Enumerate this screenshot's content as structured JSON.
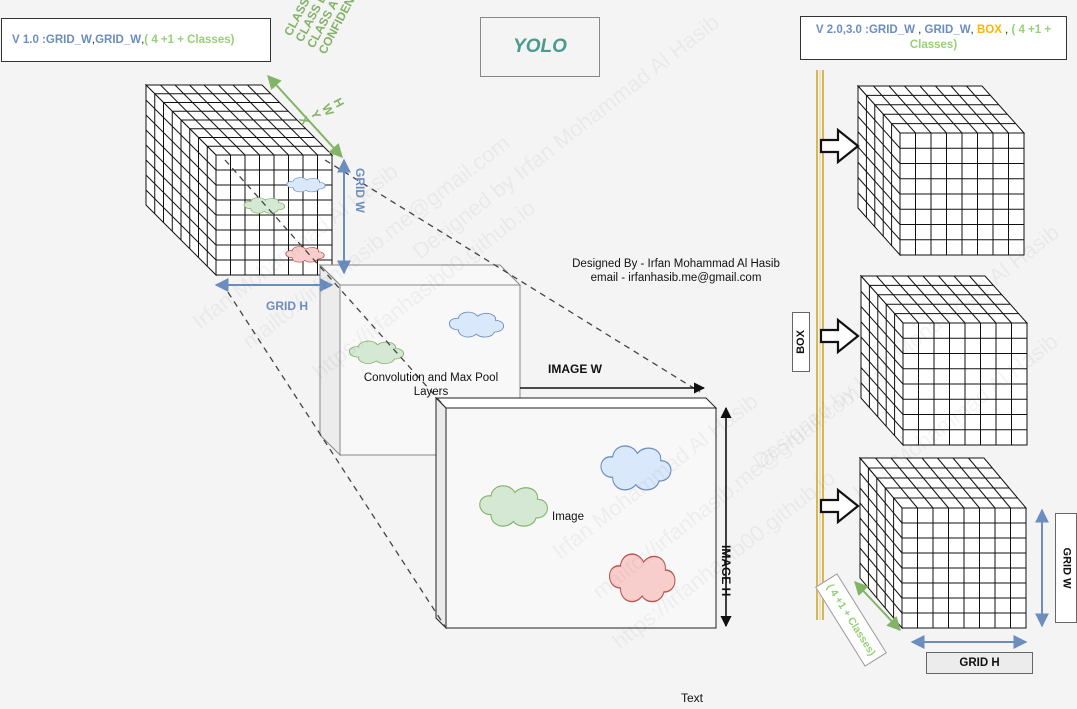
{
  "title": "YOLO",
  "v1_label": {
    "prefix": "V 1.0 : ",
    "grid_w": "GRID_W",
    "sep1": " , ",
    "grid_w2": "GRID_W",
    "sep2": " , ",
    "classes": "( 4 +1 + Classes)"
  },
  "v2_label": {
    "prefix": "V 2.0,3.0 :",
    "grid_w": "GRID_W",
    "sep1": " , ",
    "grid_w2": "GRID_W",
    "sep2": ", ",
    "box": "BOX",
    "sep3": " , ",
    "classes": "( 4 +1 + Classes)"
  },
  "designed_by": "Designed By - Irfan Mohammad Al Hasib",
  "email": "email - irfanhasib.me@gmail.com",
  "conv_label": "Convolution and Max Pool Layers",
  "image_label": "Image",
  "image_w": "IMAGE W",
  "image_h": "IMAGE H",
  "grid_h_left": "GRID H",
  "grid_w_left": "GRID W",
  "grid_h_right": "GRID H",
  "grid_w_right": "GRID W",
  "box_label": "BOX",
  "classes_tag": "( 4 +1 + Classes)",
  "output_fields": [
    "CLASS C",
    "CLASS B",
    "CLASS A",
    "CONFIDENCE"
  ],
  "bbox_fields": [
    "H",
    "W",
    "Y",
    "X"
  ],
  "text_label": "Text",
  "watermarks": [
    "Irfan Mohammad Al Hasib",
    "mailto://irfanhasib.me@gmail.com",
    "https://irfanhasib00.github.io",
    "Designed by Irfan Mohammad Al Hasib"
  ],
  "colors": {
    "blue": "#6c8ebf",
    "green": "#97d077",
    "dark_green": "#82b366",
    "orange": "#ffb300",
    "teal_title": "#4a9a8e",
    "cloud_blue": "#dae8fc",
    "cloud_green": "#d5e8d4",
    "cloud_red": "#f8cecc",
    "pipe_line": "#d6b656"
  }
}
